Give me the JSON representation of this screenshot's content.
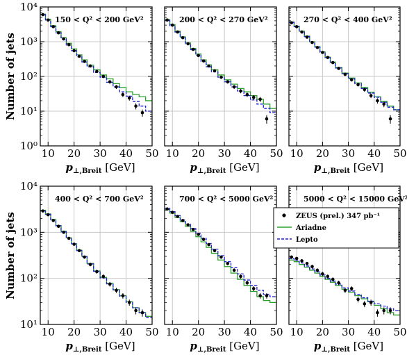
{
  "colors": {
    "ariadne": "#2ca02c",
    "lepto": "#1f1fd6",
    "zeus": "#000000",
    "grid": "#c8c8c8"
  },
  "axes": {
    "ylabel": "Number of jets",
    "xlabel_main": "p",
    "xlabel_sub": "⊥,Breit",
    "xlabel_unit": "[GeV]",
    "xticks": [
      10,
      20,
      30,
      40,
      50
    ],
    "xlim": [
      7,
      50
    ],
    "yscale": "log"
  },
  "legend": {
    "placement": "panel 6, top",
    "entries": [
      {
        "label": "ZEUS (prel.) 347 pb⁻¹",
        "style": "points",
        "color": "#000000"
      },
      {
        "label": "Ariadne",
        "style": "solid",
        "color": "#2ca02c"
      },
      {
        "label": "Lepto",
        "style": "dashed",
        "color": "#1f1fd6"
      }
    ]
  },
  "chart_data": [
    {
      "type": "line",
      "title": "150 < Q² < 200 GeV²",
      "ylim": [
        1,
        10000
      ],
      "yticks": [
        1,
        10,
        100,
        1000,
        10000
      ],
      "ytick_labels": [
        "10⁰",
        "10¹",
        "10²",
        "10³",
        "10⁴"
      ],
      "x_edges": [
        7,
        9,
        11,
        13,
        15,
        17,
        19,
        21,
        23,
        25,
        27.5,
        30,
        32.5,
        35,
        37.5,
        40,
        42.5,
        45,
        47.5,
        50
      ],
      "series": [
        {
          "name": "ZEUS (prel.) 347 pb⁻¹",
          "style": "points",
          "values": [
            6000,
            4200,
            2700,
            1800,
            1200,
            820,
            550,
            380,
            270,
            200,
            140,
            100,
            70,
            50,
            30,
            24,
            14,
            9
          ]
        },
        {
          "name": "Ariadne",
          "style": "solid",
          "values": [
            6200,
            4400,
            2900,
            1950,
            1300,
            900,
            620,
            420,
            300,
            210,
            155,
            110,
            85,
            62,
            48,
            36,
            30,
            26,
            20
          ]
        },
        {
          "name": "Lepto",
          "style": "dashed",
          "values": [
            6000,
            4200,
            2700,
            1800,
            1200,
            800,
            550,
            370,
            260,
            190,
            130,
            95,
            68,
            50,
            36,
            27,
            19,
            14,
            10
          ]
        }
      ]
    },
    {
      "type": "line",
      "title": "200 < Q² < 270 GeV²",
      "ylim": [
        1,
        10000
      ],
      "yticks": [
        1,
        10,
        100,
        1000,
        10000
      ],
      "ytick_labels": [],
      "x_edges": [
        7,
        9,
        11,
        13,
        15,
        17,
        19,
        21,
        23,
        25,
        27.5,
        30,
        32.5,
        35,
        37.5,
        40,
        42.5,
        45,
        47.5,
        50
      ],
      "series": [
        {
          "name": "ZEUS (prel.) 347 pb⁻¹",
          "style": "points",
          "values": [
            4200,
            3000,
            1900,
            1300,
            870,
            600,
            400,
            280,
            200,
            145,
            95,
            70,
            50,
            38,
            30,
            25,
            22,
            6
          ]
        },
        {
          "name": "Ariadne",
          "style": "solid",
          "values": [
            4300,
            3100,
            2000,
            1380,
            920,
            640,
            440,
            300,
            215,
            155,
            110,
            80,
            60,
            45,
            36,
            28,
            22,
            16,
            12
          ]
        },
        {
          "name": "Lepto",
          "style": "dashed",
          "values": [
            4100,
            2900,
            1900,
            1300,
            860,
            590,
            400,
            270,
            190,
            135,
            95,
            70,
            50,
            38,
            28,
            21,
            16,
            12,
            9
          ]
        }
      ]
    },
    {
      "type": "line",
      "title": "270 < Q² < 400 GeV²",
      "ylim": [
        1,
        10000
      ],
      "yticks": [
        1,
        10,
        100,
        1000,
        10000
      ],
      "ytick_labels": [],
      "x_edges": [
        7,
        9,
        11,
        13,
        15,
        17,
        19,
        21,
        23,
        25,
        27.5,
        30,
        32.5,
        35,
        37.5,
        40,
        42.5,
        45,
        47.5,
        50
      ],
      "series": [
        {
          "name": "ZEUS (prel.) 347 pb⁻¹",
          "style": "points",
          "values": [
            3500,
            2700,
            1900,
            1350,
            950,
            680,
            490,
            350,
            250,
            170,
            115,
            80,
            58,
            42,
            28,
            20,
            16,
            6
          ]
        },
        {
          "name": "Ariadne",
          "style": "solid",
          "values": [
            3700,
            2800,
            2000,
            1450,
            1000,
            720,
            510,
            360,
            260,
            180,
            125,
            90,
            65,
            48,
            35,
            26,
            19,
            14,
            11
          ]
        },
        {
          "name": "Lepto",
          "style": "dashed",
          "values": [
            3600,
            2700,
            1950,
            1400,
            970,
            700,
            500,
            350,
            250,
            175,
            120,
            85,
            62,
            45,
            33,
            25,
            18,
            13,
            11
          ]
        }
      ]
    },
    {
      "type": "line",
      "title": "400 < Q² < 700 GeV²",
      "ylim": [
        10,
        10000
      ],
      "yticks": [
        10,
        100,
        1000,
        10000
      ],
      "ytick_labels": [
        "10¹",
        "10²",
        "10³",
        "10⁴"
      ],
      "x_edges": [
        7,
        9,
        11,
        13,
        15,
        17,
        19,
        21,
        23,
        25,
        27.5,
        30,
        32.5,
        35,
        37.5,
        40,
        42.5,
        45,
        47.5,
        50
      ],
      "series": [
        {
          "name": "ZEUS (prel.) 347 pb⁻¹",
          "style": "points",
          "values": [
            2900,
            2400,
            1800,
            1350,
            1000,
            740,
            550,
            400,
            290,
            200,
            140,
            110,
            75,
            55,
            42,
            30,
            20,
            18
          ]
        },
        {
          "name": "Ariadne",
          "style": "solid",
          "values": [
            3000,
            2500,
            1900,
            1400,
            1050,
            760,
            560,
            410,
            300,
            210,
            145,
            105,
            78,
            57,
            42,
            31,
            23,
            18,
            15
          ]
        },
        {
          "name": "Lepto",
          "style": "dashed",
          "values": [
            2900,
            2450,
            1850,
            1380,
            1020,
            750,
            560,
            400,
            295,
            205,
            142,
            102,
            76,
            56,
            41,
            30,
            23,
            18,
            14
          ]
        }
      ]
    },
    {
      "type": "line",
      "title": "700 < Q² < 5000 GeV²",
      "ylim": [
        10,
        10000
      ],
      "yticks": [
        10,
        100,
        1000,
        10000
      ],
      "ytick_labels": [],
      "x_edges": [
        7,
        9,
        11,
        13,
        15,
        17,
        19,
        21,
        23,
        25,
        27.5,
        30,
        32.5,
        35,
        37.5,
        40,
        42.5,
        45,
        47.5,
        50
      ],
      "series": [
        {
          "name": "ZEUS (prel.) 347 pb⁻¹",
          "style": "points",
          "values": [
            3200,
            2700,
            2200,
            1800,
            1450,
            1150,
            900,
            700,
            540,
            400,
            290,
            210,
            150,
            110,
            80,
            60,
            42,
            42
          ]
        },
        {
          "name": "Ariadne",
          "style": "solid",
          "values": [
            3100,
            2600,
            2100,
            1700,
            1350,
            1050,
            800,
            620,
            470,
            350,
            250,
            180,
            130,
            95,
            70,
            52,
            40,
            33,
            30
          ]
        },
        {
          "name": "Lepto",
          "style": "dashed",
          "values": [
            3300,
            2800,
            2300,
            1850,
            1500,
            1200,
            950,
            740,
            570,
            430,
            310,
            230,
            170,
            125,
            92,
            70,
            55,
            45,
            40
          ]
        }
      ]
    },
    {
      "type": "line",
      "title": "5000 < Q² < 15000 GeV²",
      "ylim": [
        10,
        10000
      ],
      "yticks": [
        10,
        100,
        1000,
        10000
      ],
      "ytick_labels": [],
      "x_edges": [
        7,
        9,
        11,
        13,
        15,
        17,
        19,
        21,
        23,
        25,
        27.5,
        30,
        32.5,
        35,
        37.5,
        40,
        42.5,
        45,
        47.5,
        50
      ],
      "series": [
        {
          "name": "ZEUS (prel.) 347 pb⁻¹",
          "style": "points",
          "values": [
            290,
            270,
            240,
            210,
            180,
            150,
            125,
            110,
            95,
            80,
            55,
            60,
            35,
            28,
            30,
            18,
            20,
            20
          ]
        },
        {
          "name": "Ariadne",
          "style": "solid",
          "values": [
            250,
            230,
            200,
            175,
            150,
            130,
            110,
            95,
            82,
            70,
            58,
            50,
            42,
            36,
            31,
            26,
            22,
            18,
            16
          ]
        },
        {
          "name": "Lepto",
          "style": "dashed",
          "values": [
            270,
            245,
            215,
            185,
            160,
            138,
            118,
            100,
            87,
            75,
            62,
            53,
            45,
            38,
            32,
            28,
            25,
            22,
            20
          ]
        }
      ]
    }
  ]
}
